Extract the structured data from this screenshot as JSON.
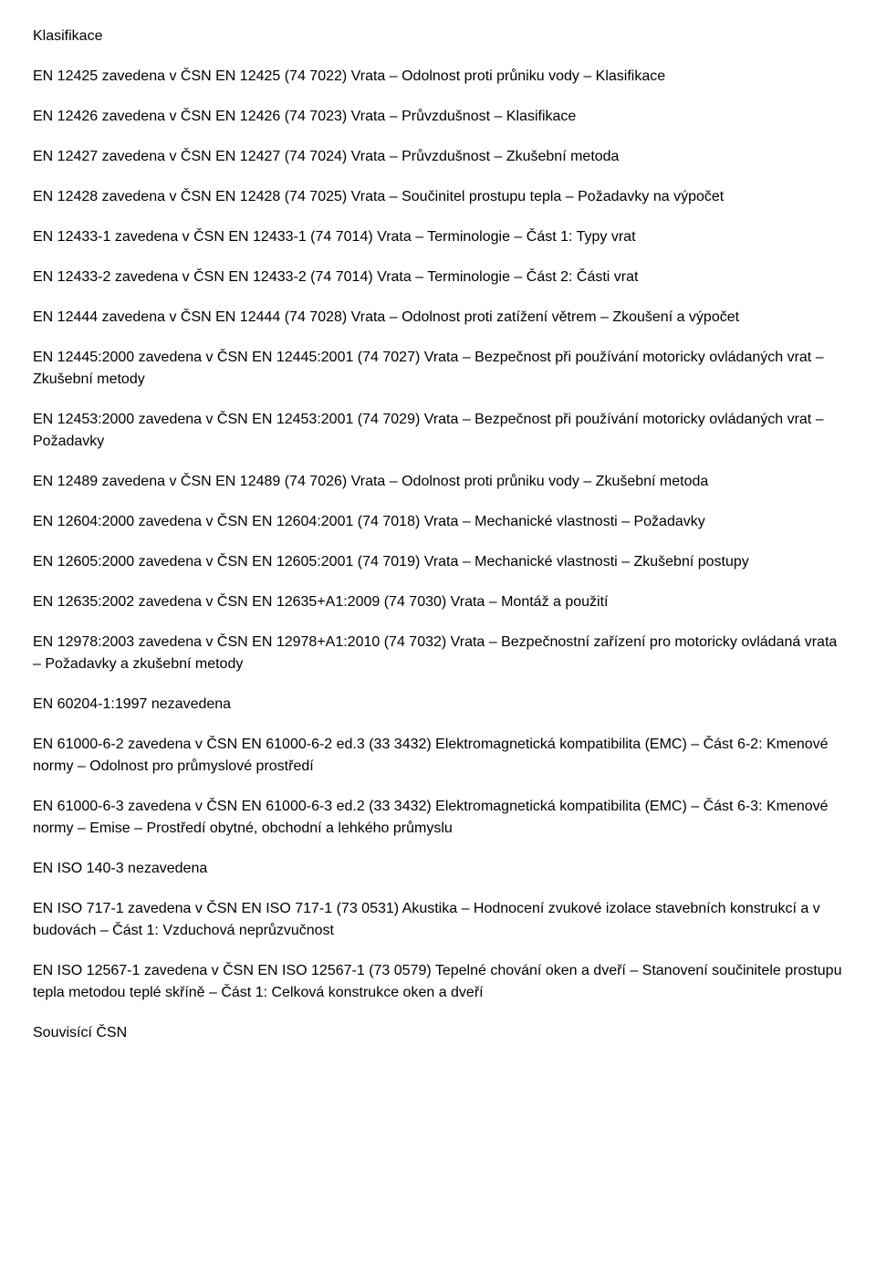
{
  "paragraphs": [
    "Klasifikace",
    "EN 12425 zavedena v ČSN EN 12425 (74 7022) Vrata – Odolnost proti průniku vody – Klasifikace",
    "EN 12426 zavedena v ČSN EN 12426 (74 7023) Vrata – Průvzdušnost – Klasifikace",
    "EN 12427 zavedena v ČSN EN 12427 (74 7024) Vrata – Průvzdušnost – Zkušební metoda",
    "EN 12428 zavedena v ČSN EN 12428 (74 7025) Vrata – Součinitel prostupu tepla – Požadavky na výpočet",
    "EN 12433-1 zavedena v ČSN EN 12433-1 (74 7014) Vrata – Terminologie – Část 1: Typy vrat",
    "EN 12433-2 zavedena v ČSN EN 12433-2 (74 7014) Vrata – Terminologie – Část 2: Části vrat",
    "EN 12444 zavedena v ČSN EN 12444 (74 7028) Vrata – Odolnost proti zatížení větrem – Zkoušení a výpočet",
    "EN 12445:2000 zavedena v ČSN EN 12445:2001 (74 7027) Vrata – Bezpečnost při používání motoricky ovládaných vrat – Zkušební metody",
    "EN 12453:2000 zavedena v ČSN EN 12453:2001 (74 7029) Vrata – Bezpečnost při používání motoricky ovládaných vrat – Požadavky",
    "EN 12489 zavedena v ČSN EN 12489 (74 7026) Vrata – Odolnost proti průniku vody – Zkušební metoda",
    "EN 12604:2000 zavedena v ČSN EN 12604:2001 (74 7018) Vrata – Mechanické vlastnosti – Požadavky",
    "EN 12605:2000 zavedena v ČSN EN 12605:2001 (74 7019) Vrata – Mechanické vlastnosti – Zkušební postupy",
    "EN 12635:2002 zavedena v ČSN EN 12635+A1:2009 (74 7030) Vrata – Montáž a použití",
    "EN 12978:2003 zavedena v ČSN EN 12978+A1:2010 (74 7032) Vrata – Bezpečnostní zařízení pro motoricky ovládaná vrata – Požadavky a zkušební metody",
    "EN 60204-1:1997 nezavedena",
    "EN 61000-6-2 zavedena v ČSN EN 61000-6-2 ed.3 (33 3432) Elektromagnetická kompatibilita (EMC) – Část 6-2: Kmenové normy – Odolnost pro průmyslové prostředí",
    "EN 61000-6-3 zavedena v ČSN EN 61000-6-3 ed.2 (33 3432) Elektromagnetická kompatibilita (EMC) – Část 6-3: Kmenové normy – Emise – Prostředí obytné, obchodní a lehkého průmyslu",
    "EN ISO 140-3 nezavedena",
    "EN ISO 717-1 zavedena v ČSN EN ISO 717-1 (73 0531) Akustika – Hodnocení zvukové izolace stavebních konstrukcí a v budovách – Část 1: Vzduchová neprůzvučnost",
    "EN ISO 12567-1 zavedena v ČSN EN ISO 12567-1 (73 0579) Tepelné chování oken a dveří – Stanovení součinitele prostupu tepla metodou teplé skříně – Část 1: Celková konstrukce oken a dveří",
    "Souvisící ČSN"
  ]
}
